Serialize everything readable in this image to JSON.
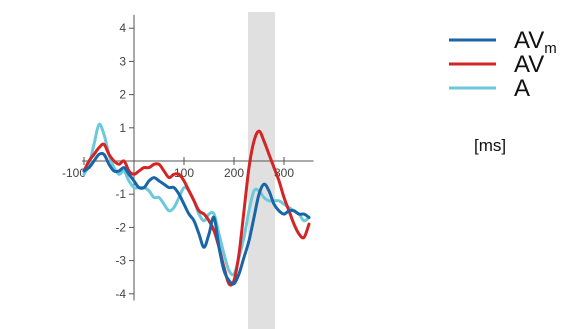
{
  "chart_data": {
    "type": "line",
    "title": "",
    "xlabel": "[ms]",
    "ylabel": "",
    "xlim": [
      -100,
      355
    ],
    "ylim": [
      -4.2,
      4.4
    ],
    "x_ticks": [
      -100,
      100,
      200,
      300
    ],
    "y_ticks": [
      -4,
      -3,
      -2,
      -1,
      1,
      2,
      3,
      4
    ],
    "grid": false,
    "legend_position": "top-right",
    "highlight_band": {
      "x_start": 228,
      "x_end": 282,
      "color": "#e0e0e0"
    },
    "series": [
      {
        "name": "AV",
        "subscript": "m",
        "color": "#1a65a8",
        "x": [
          -100,
          -90,
          -80,
          -70,
          -60,
          -50,
          -40,
          -30,
          -20,
          -10,
          0,
          10,
          20,
          30,
          40,
          50,
          60,
          70,
          80,
          90,
          100,
          110,
          120,
          130,
          140,
          150,
          160,
          170,
          180,
          190,
          200,
          210,
          220,
          230,
          240,
          250,
          260,
          270,
          280,
          290,
          300,
          310,
          320,
          330,
          340,
          350
        ],
        "y": [
          -0.3,
          -0.2,
          0,
          0.2,
          0.2,
          -0.1,
          -0.3,
          -0.3,
          -0.2,
          -0.4,
          -0.6,
          -0.8,
          -0.8,
          -0.6,
          -0.5,
          -0.6,
          -0.7,
          -0.8,
          -0.8,
          -1.0,
          -1.3,
          -1.6,
          -1.8,
          -2.2,
          -2.6,
          -2.2,
          -1.7,
          -2.6,
          -3.3,
          -3.6,
          -3.7,
          -3.4,
          -2.9,
          -2.4,
          -1.7,
          -1.0,
          -0.7,
          -0.9,
          -1.3,
          -1.5,
          -1.6,
          -1.5,
          -1.5,
          -1.6,
          -1.6,
          -1.7
        ]
      },
      {
        "name": "AV",
        "color": "#d42424",
        "x": [
          -100,
          -90,
          -80,
          -70,
          -60,
          -50,
          -40,
          -30,
          -20,
          -10,
          0,
          10,
          20,
          30,
          40,
          50,
          60,
          70,
          80,
          90,
          100,
          110,
          120,
          130,
          140,
          150,
          160,
          170,
          180,
          190,
          200,
          210,
          220,
          230,
          240,
          250,
          260,
          270,
          280,
          290,
          300,
          310,
          320,
          330,
          340,
          350
        ],
        "y": [
          -0.3,
          0,
          0.2,
          0.4,
          0.5,
          0.2,
          0,
          -0.1,
          0,
          -0.3,
          -0.4,
          -0.3,
          -0.2,
          -0.2,
          -0.1,
          -0.1,
          -0.3,
          -0.5,
          -0.4,
          -0.4,
          -0.6,
          -0.9,
          -1.2,
          -1.5,
          -1.6,
          -1.8,
          -2.1,
          -2.6,
          -3.2,
          -3.7,
          -3.6,
          -2.8,
          -1.5,
          -0.2,
          0.6,
          0.9,
          0.6,
          0.2,
          -0.2,
          -0.6,
          -1.1,
          -1.5,
          -1.9,
          -2.2,
          -2.3,
          -1.9
        ]
      },
      {
        "name": "A",
        "color": "#6cc9d9",
        "x": [
          -100,
          -90,
          -80,
          -70,
          -60,
          -50,
          -40,
          -30,
          -20,
          -10,
          0,
          10,
          20,
          30,
          40,
          50,
          60,
          70,
          80,
          90,
          100,
          110,
          120,
          130,
          140,
          150,
          160,
          170,
          180,
          190,
          200,
          210,
          220,
          230,
          240,
          250,
          260,
          270,
          280,
          290,
          300,
          310,
          320,
          330,
          340,
          350
        ],
        "y": [
          -0.4,
          -0.1,
          0.5,
          1.1,
          0.8,
          0.2,
          -0.2,
          -0.4,
          -0.3,
          -0.6,
          -0.8,
          -0.8,
          -0.8,
          -0.9,
          -1.1,
          -1.1,
          -1.3,
          -1.5,
          -1.4,
          -1.1,
          -0.8,
          -0.9,
          -1.2,
          -1.6,
          -1.8,
          -1.6,
          -1.6,
          -2.2,
          -2.8,
          -3.3,
          -3.4,
          -2.9,
          -2.3,
          -1.5,
          -0.9,
          -0.9,
          -1.1,
          -1.2,
          -1.2,
          -1.2,
          -1.3,
          -1.4,
          -1.5,
          -1.6,
          -1.8,
          -1.7
        ]
      }
    ]
  }
}
